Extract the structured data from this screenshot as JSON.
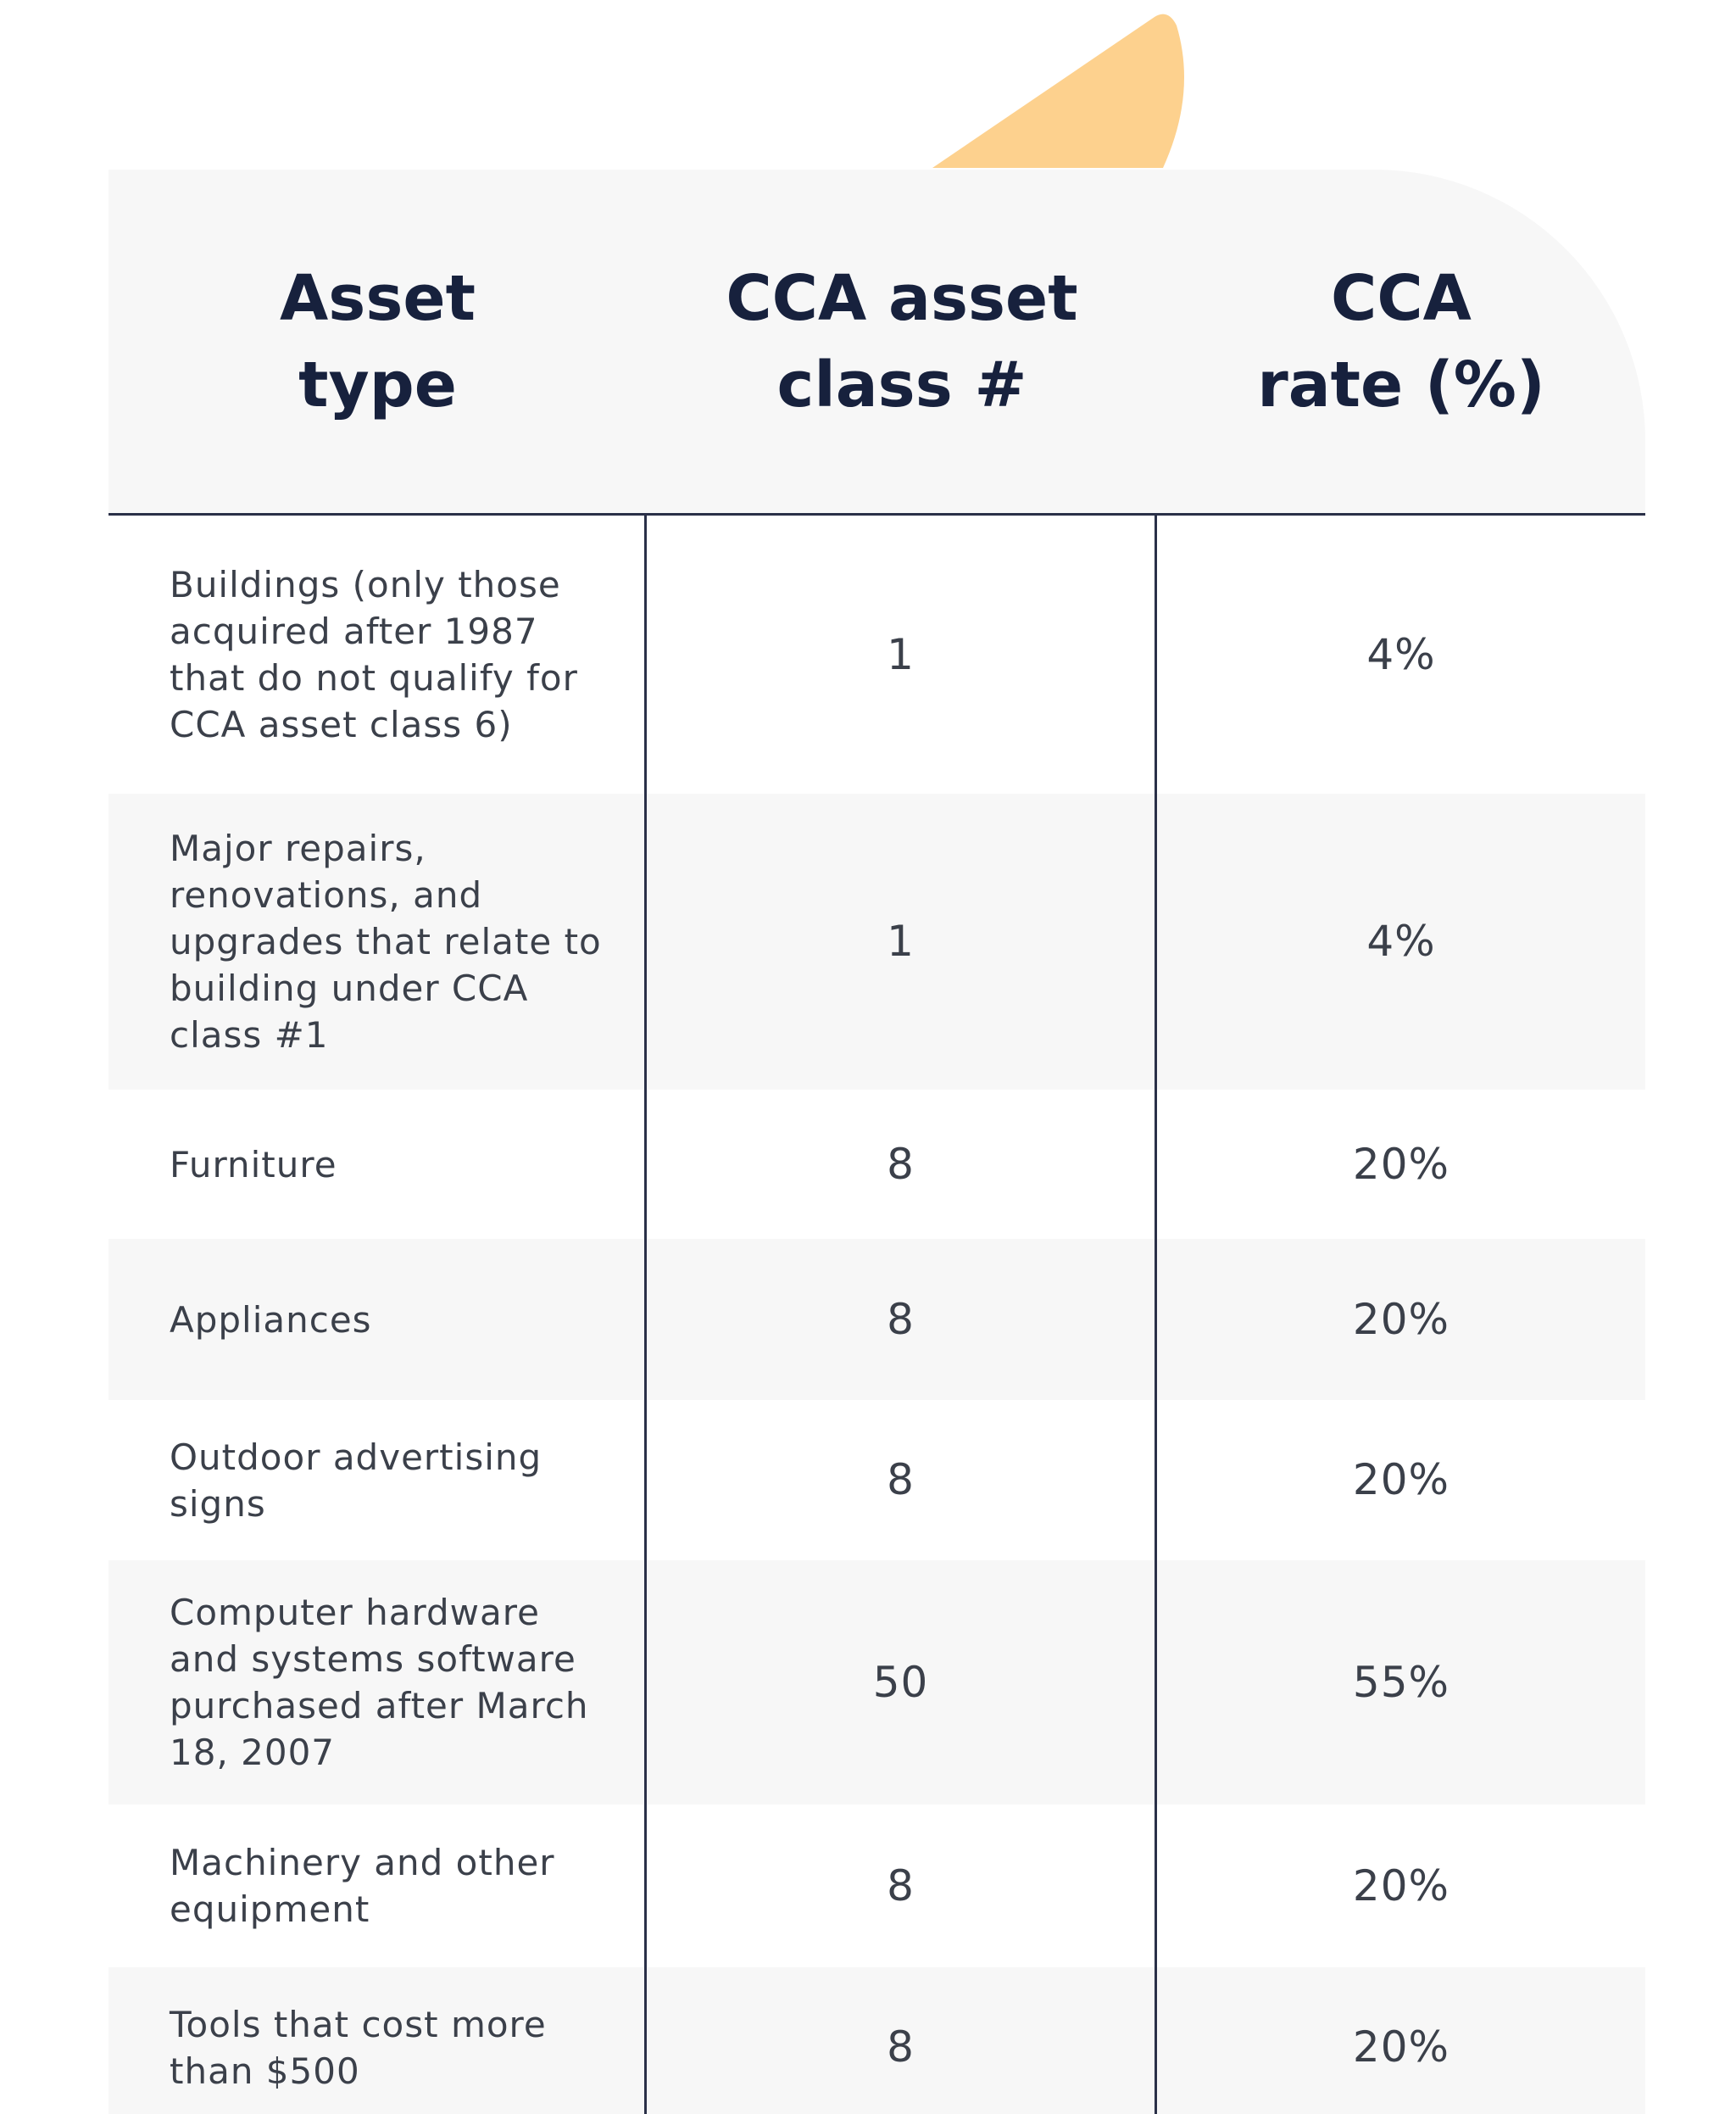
{
  "table": {
    "headers": [
      "Asset type",
      "CCA asset class #",
      "CCA rate (%)"
    ],
    "rows": [
      [
        "Buildings (only those acquired after 1987 that do not qualify for CCA asset class 6)",
        "1",
        "4%"
      ],
      [
        "Major repairs, renovations, and upgrades that relate to building under CCA class #1",
        "1",
        "4%"
      ],
      [
        "Furniture",
        "8",
        "20%"
      ],
      [
        "Appliances",
        "8",
        "20%"
      ],
      [
        "Outdoor advertising signs",
        "8",
        "20%"
      ],
      [
        "Computer hardware and systems software purchased after March 18, 2007",
        "50",
        "55%"
      ],
      [
        "Machinery and other equipment",
        "8",
        "20%"
      ],
      [
        "Tools that cost more than $500",
        "8",
        "20%"
      ]
    ]
  }
}
